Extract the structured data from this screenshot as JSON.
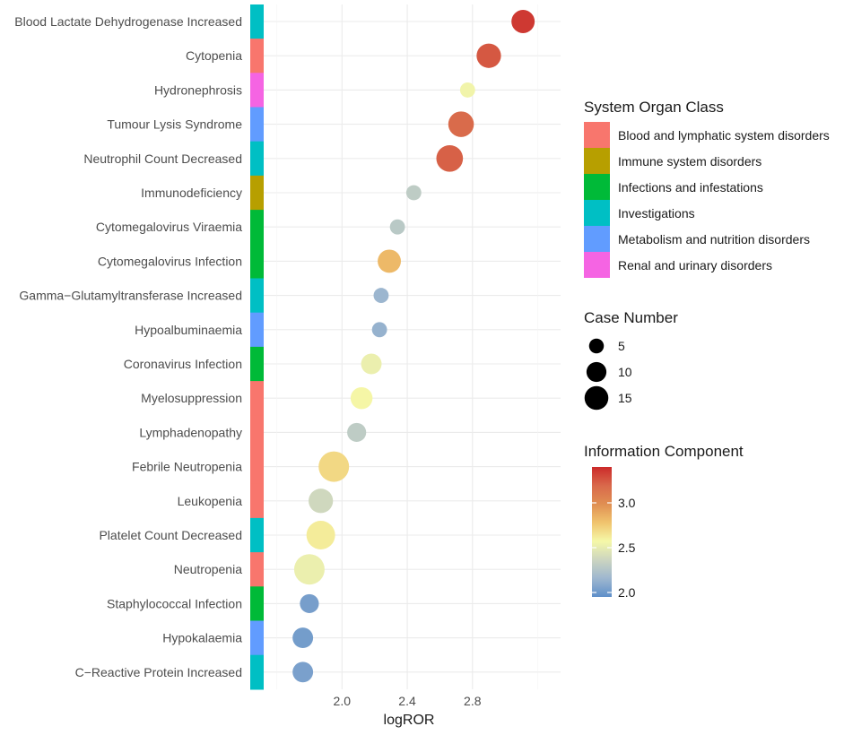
{
  "chart_data": {
    "type": "scatter",
    "title": "",
    "xlabel": "logROR",
    "ylabel": "",
    "xlim": [
      1.52,
      3.34
    ],
    "x_ticks": [
      {
        "value": 2.0,
        "label": "2.0"
      },
      {
        "value": 2.4,
        "label": "2.4"
      },
      {
        "value": 2.8,
        "label": "2.8"
      }
    ],
    "categories": [
      "Blood Lactate Dehydrogenase Increased",
      "Cytopenia",
      "Hydronephrosis",
      "Tumour Lysis Syndrome",
      "Neutrophil Count Decreased",
      "Immunodeficiency",
      "Cytomegalovirus Viraemia",
      "Cytomegalovirus Infection",
      "Gamma−Glutamyltransferase Increased",
      "Hypoalbuminaemia",
      "Coronavirus Infection",
      "Myelosuppression",
      "Lymphadenopathy",
      "Febrile Neutropenia",
      "Leukopenia",
      "Platelet Count Decreased",
      "Neutropenia",
      "Staphylococcal Infection",
      "Hypokalaemia",
      "C−Reactive Protein Increased"
    ],
    "points": [
      {
        "label": "Blood Lactate Dehydrogenase Increased",
        "logROR": 3.11,
        "cases": 8,
        "ic": 3.35,
        "soc": "Investigations"
      },
      {
        "label": "Cytopenia",
        "logROR": 2.9,
        "cases": 9,
        "ic": 3.25,
        "soc": "Blood and lymphatic system disorders"
      },
      {
        "label": "Hydronephrosis",
        "logROR": 2.77,
        "cases": 3,
        "ic": 2.55,
        "soc": "Renal and urinary disorders"
      },
      {
        "label": "Tumour Lysis Syndrome",
        "logROR": 2.73,
        "cases": 10,
        "ic": 3.18,
        "soc": "Metabolism and nutrition disorders"
      },
      {
        "label": "Neutrophil Count Decreased",
        "logROR": 2.66,
        "cases": 11,
        "ic": 3.22,
        "soc": "Investigations"
      },
      {
        "label": "Immunodeficiency",
        "logROR": 2.44,
        "cases": 3,
        "ic": 2.3,
        "soc": "Immune system disorders"
      },
      {
        "label": "Cytomegalovirus Viraemia",
        "logROR": 2.34,
        "cases": 3,
        "ic": 2.28,
        "soc": "Infections and infestations"
      },
      {
        "label": "Cytomegalovirus Infection",
        "logROR": 2.29,
        "cases": 8,
        "ic": 2.82,
        "soc": "Infections and infestations"
      },
      {
        "label": "Gamma−Glutamyltransferase Increased",
        "logROR": 2.24,
        "cases": 3,
        "ic": 2.15,
        "soc": "Investigations"
      },
      {
        "label": "Hypoalbuminaemia",
        "logROR": 2.23,
        "cases": 3,
        "ic": 2.13,
        "soc": "Metabolism and nutrition disorders"
      },
      {
        "label": "Coronavirus Infection",
        "logROR": 2.18,
        "cases": 6,
        "ic": 2.52,
        "soc": "Infections and infestations"
      },
      {
        "label": "Myelosuppression",
        "logROR": 2.12,
        "cases": 7,
        "ic": 2.58,
        "soc": "Blood and lymphatic system disorders"
      },
      {
        "label": "Lymphadenopathy",
        "logROR": 2.09,
        "cases": 5,
        "ic": 2.3,
        "soc": "Blood and lymphatic system disorders"
      },
      {
        "label": "Febrile Neutropenia",
        "logROR": 1.95,
        "cases": 15,
        "ic": 2.7,
        "soc": "Blood and lymphatic system disorders"
      },
      {
        "label": "Leukopenia",
        "logROR": 1.87,
        "cases": 9,
        "ic": 2.38,
        "soc": "Blood and lymphatic system disorders"
      },
      {
        "label": "Platelet Count Decreased",
        "logROR": 1.87,
        "cases": 13,
        "ic": 2.62,
        "soc": "Investigations"
      },
      {
        "label": "Neutropenia",
        "logROR": 1.8,
        "cases": 15,
        "ic": 2.52,
        "soc": "Blood and lymphatic system disorders"
      },
      {
        "label": "Staphylococcal Infection",
        "logROR": 1.8,
        "cases": 5,
        "ic": 2.03,
        "soc": "Infections and infestations"
      },
      {
        "label": "Hypokalaemia",
        "logROR": 1.76,
        "cases": 6,
        "ic": 2.02,
        "soc": "Metabolism and nutrition disorders"
      },
      {
        "label": "C−Reactive Protein Increased",
        "logROR": 1.76,
        "cases": 6,
        "ic": 2.04,
        "soc": "Investigations"
      }
    ],
    "legend_soc": {
      "title": "System Organ Class",
      "entries": [
        {
          "label": "Blood and lymphatic system disorders",
          "color": "#F8766D"
        },
        {
          "label": "Immune system disorders",
          "color": "#B79F00"
        },
        {
          "label": "Infections and infestations",
          "color": "#00BA38"
        },
        {
          "label": "Investigations",
          "color": "#00BFC4"
        },
        {
          "label": "Metabolism and nutrition disorders",
          "color": "#619CFF"
        },
        {
          "label": "Renal and urinary disorders",
          "color": "#F564E3"
        }
      ]
    },
    "legend_size": {
      "title": "Case Number",
      "entries": [
        {
          "label": "5",
          "value": 5
        },
        {
          "label": "10",
          "value": 10
        },
        {
          "label": "15",
          "value": 15
        }
      ]
    },
    "legend_color": {
      "title": "Information Component",
      "range": [
        1.95,
        3.4
      ],
      "ticks": [
        {
          "label": "2.0",
          "value": 2.0
        },
        {
          "label": "2.5",
          "value": 2.5
        },
        {
          "label": "3.0",
          "value": 3.0
        }
      ]
    },
    "palette": [
      "#5E8FC9",
      "#9EB7CF",
      "#CCD5C0",
      "#F5F8A8",
      "#F0C46E",
      "#E08F52",
      "#D9694B",
      "#CB2A2A"
    ]
  }
}
